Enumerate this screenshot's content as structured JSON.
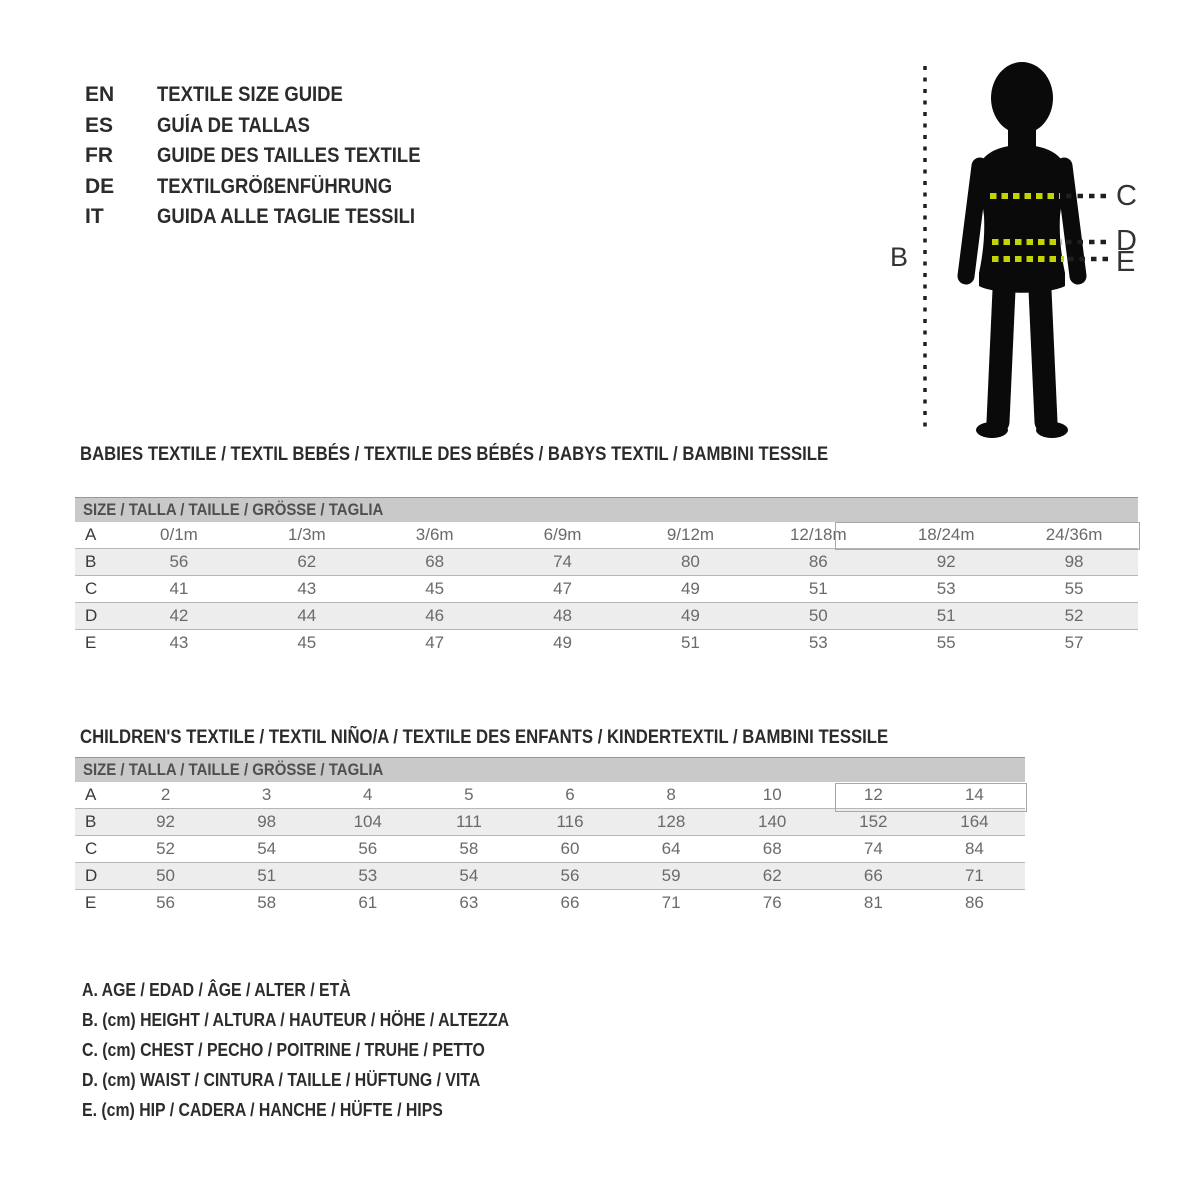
{
  "languages": [
    {
      "code": "EN",
      "title": "TEXTILE SIZE GUIDE"
    },
    {
      "code": "ES",
      "title": "GUÍA DE TALLAS"
    },
    {
      "code": "FR",
      "title": "GUIDE DES TAILLES TEXTILE"
    },
    {
      "code": "DE",
      "title": "TEXTILGRÖßENFÜHRUNG"
    },
    {
      "code": "IT",
      "title": "GUIDA ALLE TAGLIE TESSILI"
    }
  ],
  "figure": {
    "labels": {
      "height": "B",
      "chest": "C",
      "waist": "D",
      "hip": "E"
    }
  },
  "colors": {
    "measure_line": "#c3d500",
    "table_header_bg": "#c9c9c9",
    "row_stripe": "#ededed",
    "silhouette": "#0a0a0a"
  },
  "sections": [
    {
      "heading": "BABIES TEXTILE / TEXTIL BEBÉS / TEXTILE DES BÉBÉS / BABYS TEXTIL / BAMBINI TESSILE",
      "table": {
        "header": "SIZE / TALLA / TAILLE / GRÖSSE / TAGLIA",
        "rows": [
          {
            "label": "A",
            "values": [
              "0/1m",
              "1/3m",
              "3/6m",
              "6/9m",
              "9/12m",
              "12/18m",
              "18/24m",
              "24/36m"
            ]
          },
          {
            "label": "B",
            "values": [
              "56",
              "62",
              "68",
              "74",
              "80",
              "86",
              "92",
              "98"
            ]
          },
          {
            "label": "C",
            "values": [
              "41",
              "43",
              "45",
              "47",
              "49",
              "51",
              "53",
              "55"
            ]
          },
          {
            "label": "D",
            "values": [
              "42",
              "44",
              "46",
              "48",
              "49",
              "50",
              "51",
              "52"
            ]
          },
          {
            "label": "E",
            "values": [
              "43",
              "45",
              "47",
              "49",
              "51",
              "53",
              "55",
              "57"
            ]
          }
        ],
        "highlight_columns": [
          "18/24m",
          "24/36m"
        ]
      }
    },
    {
      "heading": "CHILDREN'S TEXTILE / TEXTIL NIÑO/A / TEXTILE DES ENFANTS / KINDERTEXTIL / BAMBINI TESSILE",
      "table": {
        "header": "SIZE / TALLA / TAILLE / GRÖSSE / TAGLIA",
        "rows": [
          {
            "label": "A",
            "values": [
              "2",
              "3",
              "4",
              "5",
              "6",
              "8",
              "10",
              "12",
              "14"
            ]
          },
          {
            "label": "B",
            "values": [
              "92",
              "98",
              "104",
              "111",
              "116",
              "128",
              "140",
              "152",
              "164"
            ]
          },
          {
            "label": "C",
            "values": [
              "52",
              "54",
              "56",
              "58",
              "60",
              "64",
              "68",
              "74",
              "84"
            ]
          },
          {
            "label": "D",
            "values": [
              "50",
              "51",
              "53",
              "54",
              "56",
              "59",
              "62",
              "66",
              "71"
            ]
          },
          {
            "label": "E",
            "values": [
              "56",
              "58",
              "61",
              "63",
              "66",
              "71",
              "76",
              "81",
              "86"
            ]
          }
        ],
        "highlight_columns": [
          "12",
          "14"
        ]
      }
    }
  ],
  "legend": [
    "A. AGE / EDAD / ÂGE / ALTER / ETÀ",
    "B. (cm) HEIGHT / ALTURA / HAUTEUR / HÖHE / ALTEZZA",
    "C. (cm) CHEST / PECHO / POITRINE / TRUHE / PETTO",
    "D. (cm) WAIST / CINTURA / TAILLE / HÜFTUNG / VITA",
    "E. (cm) HIP / CADERA / HANCHE / HÜFTE / HIPS"
  ]
}
